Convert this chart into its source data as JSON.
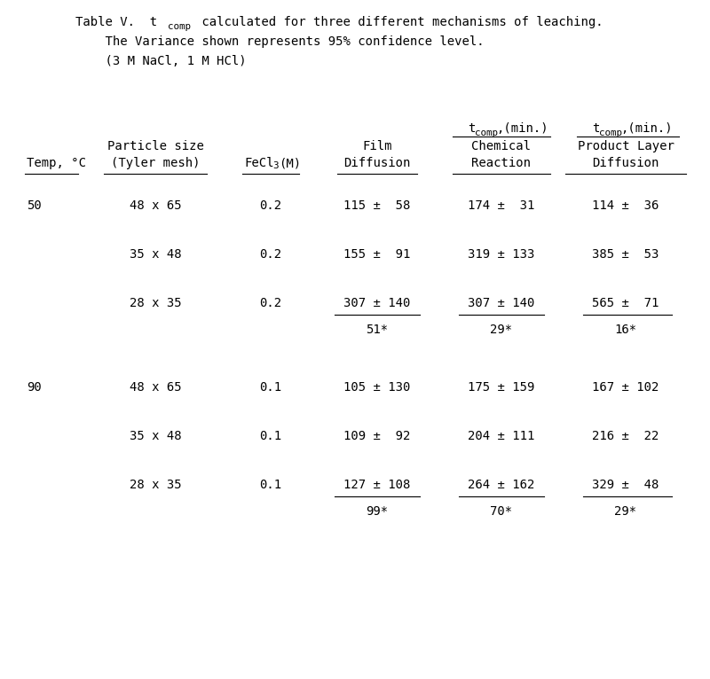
{
  "bg_color": "#ffffff",
  "text_color": "#000000",
  "font_size": 10,
  "rows": [
    {
      "temp": "50",
      "particle": "48 x 65",
      "fecl3": "0.2",
      "film": "115 ±  58",
      "chem": "174 ±  31",
      "prod": "114 ±  36",
      "ul": false,
      "star_film": "",
      "star_chem": "",
      "star_prod": ""
    },
    {
      "temp": "",
      "particle": "35 x 48",
      "fecl3": "0.2",
      "film": "155 ±  91",
      "chem": "319 ± 133",
      "prod": "385 ±  53",
      "ul": false,
      "star_film": "",
      "star_chem": "",
      "star_prod": ""
    },
    {
      "temp": "",
      "particle": "28 x 35",
      "fecl3": "0.2",
      "film": "307 ± 140",
      "chem": "307 ± 140",
      "prod": "565 ±  71",
      "ul": true,
      "star_film": "51*",
      "star_chem": "29*",
      "star_prod": "16*"
    },
    {
      "temp": "90",
      "particle": "48 x 65",
      "fecl3": "0.1",
      "film": "105 ± 130",
      "chem": "175 ± 159",
      "prod": "167 ± 102",
      "ul": false,
      "star_film": "",
      "star_chem": "",
      "star_prod": ""
    },
    {
      "temp": "",
      "particle": "35 x 48",
      "fecl3": "0.1",
      "film": "109 ±  92",
      "chem": "204 ± 111",
      "prod": "216 ±  22",
      "ul": false,
      "star_film": "",
      "star_chem": "",
      "star_prod": ""
    },
    {
      "temp": "",
      "particle": "28 x 35",
      "fecl3": "0.1",
      "film": "127 ± 108",
      "chem": "264 ± 162",
      "prod": "329 ±  48",
      "ul": true,
      "star_film": "99*",
      "star_chem": "70*",
      "star_prod": "29*"
    }
  ]
}
